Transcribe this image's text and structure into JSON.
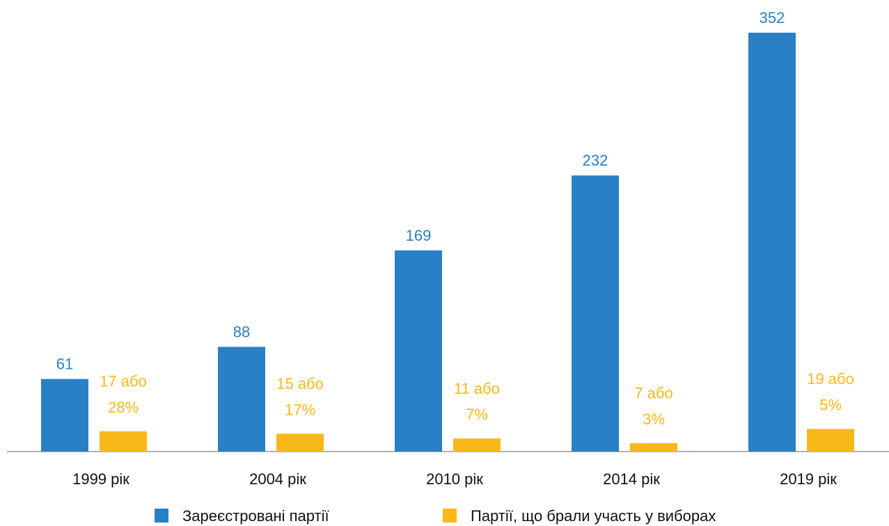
{
  "chart_data": {
    "type": "bar",
    "categories": [
      "1999 рік",
      "2004 рік",
      "2010 рік",
      "2014 рік",
      "2019 рік"
    ],
    "series": [
      {
        "name": "Зареєстровані партії",
        "color": "#2880c6",
        "values": [
          61,
          88,
          169,
          232,
          352
        ]
      },
      {
        "name": "Партії, що брали участь у виборах",
        "color": "#f9b81a",
        "values": [
          17,
          15,
          11,
          7,
          19
        ],
        "value_labels": [
          "17 або 28%",
          "15 або 17%",
          "11 або 7%",
          "7 або 3%",
          "19 або 5%"
        ]
      }
    ],
    "legend": "bottom"
  }
}
